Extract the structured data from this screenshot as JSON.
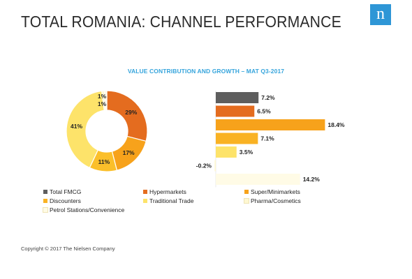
{
  "slide": {
    "title": "TOTAL ROMANIA: CHANNEL PERFORMANCE",
    "logo_letter": "n",
    "logo_color": "#2e96d6",
    "copyright": "Copyright © 2017 The Nielsen Company"
  },
  "chart_data": [
    {
      "type": "pie",
      "variant": "donut",
      "title": "VALUE CONTRIBUTION AND GROWTH – MAT Q3-2017",
      "categories": [
        "Hypermarkets",
        "Super/Minimarkets",
        "Discounters",
        "Traditional Trade",
        "Pharma/Cosmetics",
        "Petrol Stations/Convenience"
      ],
      "values": [
        29,
        17,
        11,
        41,
        1,
        1
      ],
      "labels": [
        "29%",
        "17%",
        "11%",
        "41%",
        "1%",
        "1%"
      ],
      "colors": [
        "#e46c1f",
        "#f7a21b",
        "#fbbf2a",
        "#fde36a",
        "#fff8d2",
        "#fffbe6"
      ]
    },
    {
      "type": "bar",
      "orientation": "horizontal",
      "categories": [
        "Total FMCG",
        "Hypermarkets",
        "Super/Minimarkets",
        "Discounters",
        "Traditional Trade",
        "Pharma/Cosmetics",
        "Petrol Stations/Convenience"
      ],
      "values": [
        7.2,
        6.5,
        18.4,
        7.1,
        3.5,
        -0.2,
        14.2
      ],
      "labels": [
        "7.2%",
        "6.5%",
        "18.4%",
        "7.1%",
        "3.5%",
        "-0.2%",
        "14.2%"
      ],
      "colors": [
        "#5e5e5e",
        "#e46c1f",
        "#f7a21b",
        "#f9b223",
        "#fde36a",
        "#fff8d2",
        "#fffbe6"
      ]
    }
  ],
  "legend": [
    {
      "label": "Total FMCG",
      "color": "#5e5e5e"
    },
    {
      "label": "Hypermarkets",
      "color": "#e46c1f"
    },
    {
      "label": "Super/Minimarkets",
      "color": "#f7a21b"
    },
    {
      "label": "Discounters",
      "color": "#f9b223"
    },
    {
      "label": "Traditional Trade",
      "color": "#fde36a"
    },
    {
      "label": "Pharma/Cosmetics",
      "color": "#fff8d2"
    },
    {
      "label": "Petrol Stations/Convenience",
      "color": "#fffbe6"
    }
  ]
}
